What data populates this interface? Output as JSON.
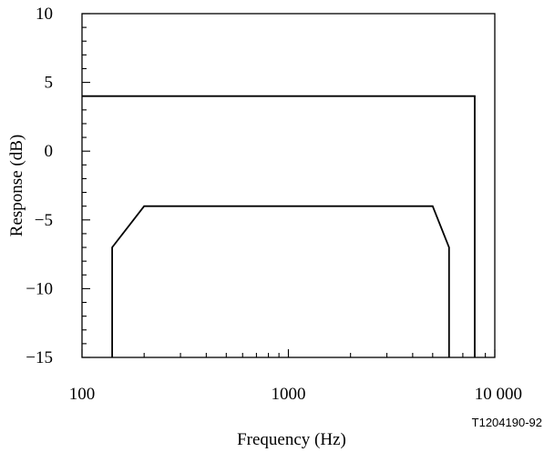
{
  "chart_data": {
    "type": "line",
    "xlabel": "Frequency (Hz)",
    "ylabel": "Response (dB)",
    "x_scale": "log",
    "xlim": [
      100,
      10000
    ],
    "ylim": [
      -15,
      10
    ],
    "x_ticks": [
      {
        "value": 100,
        "label": "100"
      },
      {
        "value": 1000,
        "label": "1000"
      },
      {
        "value": 10000,
        "label": "10 000"
      }
    ],
    "y_ticks": [
      {
        "value": 10,
        "label": "10"
      },
      {
        "value": 5,
        "label": "5"
      },
      {
        "value": 0,
        "label": "0"
      },
      {
        "value": -5,
        "label": "−5"
      },
      {
        "value": -10,
        "label": "−10"
      },
      {
        "value": -15,
        "label": "−15"
      }
    ],
    "grid": false,
    "series": [
      {
        "name": "",
        "points": [
          [
            100,
            4
          ],
          [
            8000,
            4
          ],
          [
            8000,
            -15
          ]
        ]
      },
      {
        "name": "",
        "points": [
          [
            140,
            -15
          ],
          [
            140,
            -7
          ],
          [
            200,
            -4
          ],
          [
            5000,
            -4
          ],
          [
            6000,
            -7
          ],
          [
            6000,
            -15
          ]
        ]
      }
    ],
    "annotations": [
      "T1204190-92"
    ]
  }
}
